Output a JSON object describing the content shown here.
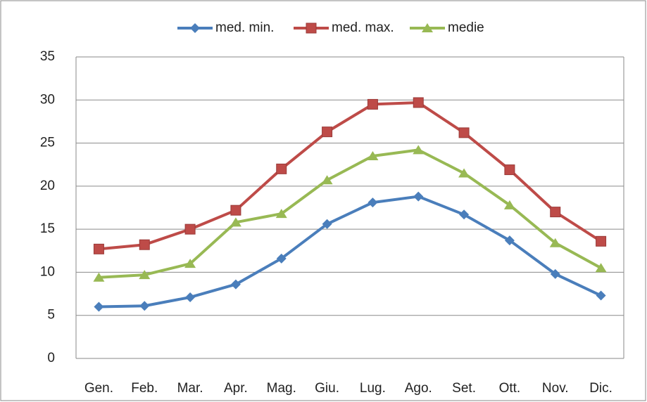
{
  "chart_data": {
    "type": "line",
    "categories": [
      "Gen.",
      "Feb.",
      "Mar.",
      "Apr.",
      "Mag.",
      "Giu.",
      "Lug.",
      "Ago.",
      "Set.",
      "Ott.",
      "Nov.",
      "Dic."
    ],
    "series": [
      {
        "name": "med. min.",
        "color": "#4a7ebb",
        "marker": "diamond",
        "values": [
          6.0,
          6.1,
          7.1,
          8.6,
          11.6,
          15.6,
          18.1,
          18.8,
          16.7,
          13.7,
          9.8,
          7.3
        ]
      },
      {
        "name": "med. max.",
        "color": "#be4b48",
        "marker": "square",
        "values": [
          12.7,
          13.2,
          15.0,
          17.2,
          22.0,
          26.3,
          29.5,
          29.7,
          26.2,
          21.9,
          17.0,
          13.6
        ]
      },
      {
        "name": "medie",
        "color": "#98b954",
        "marker": "triangle",
        "values": [
          9.4,
          9.7,
          11.0,
          15.8,
          16.8,
          20.7,
          23.5,
          24.2,
          21.5,
          17.8,
          13.4,
          10.5
        ]
      }
    ],
    "ylim": [
      0,
      35
    ],
    "yticks": [
      0,
      5,
      10,
      15,
      20,
      25,
      30,
      35
    ],
    "grid": true,
    "legend": "top"
  }
}
